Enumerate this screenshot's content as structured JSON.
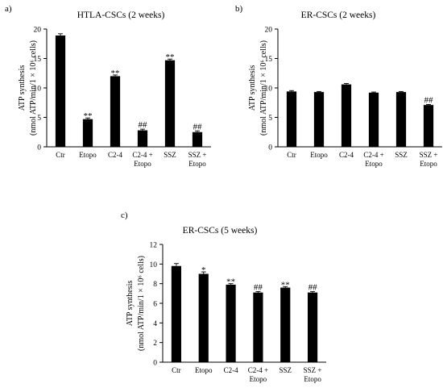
{
  "chart_data": [
    {
      "type": "bar",
      "panel": "a)",
      "title": "HTLA-CSCs (2 weeks)",
      "ylabel_line1": "ATP synthesis",
      "ylabel_line2": "(nmol ATP/min/1 × 10⁶ cells)",
      "ylim": [
        0,
        20
      ],
      "yticks": [
        0,
        5,
        10,
        15,
        20
      ],
      "categories": [
        [
          "Ctr"
        ],
        [
          "Etopo"
        ],
        [
          "C2-4"
        ],
        [
          "C2-4 +",
          "Etopo"
        ],
        [
          "SSZ"
        ],
        [
          "SSZ +",
          "Etopo"
        ]
      ],
      "values": [
        18.9,
        4.7,
        12.0,
        2.8,
        14.7,
        2.5
      ],
      "errors": [
        0.3,
        0.2,
        0.2,
        0.2,
        0.2,
        0.2
      ],
      "significance": [
        "",
        "**",
        "**",
        "##",
        "**",
        "##"
      ]
    },
    {
      "type": "bar",
      "panel": "b)",
      "title": "ER-CSCs (2 weeks)",
      "ylabel_line1": "ATP synthesis",
      "ylabel_line2": "(nmol ATP/min/1 × 10⁶ cells)",
      "ylim": [
        0,
        20
      ],
      "yticks": [
        0,
        5,
        10,
        15,
        20
      ],
      "categories": [
        [
          "Ctr"
        ],
        [
          "Etopo"
        ],
        [
          "C2-4"
        ],
        [
          "C2-4 +",
          "Etopo"
        ],
        [
          "SSZ"
        ],
        [
          "SSZ +",
          "Etopo"
        ]
      ],
      "values": [
        9.4,
        9.3,
        10.6,
        9.2,
        9.3,
        7.1
      ],
      "errors": [
        0.15,
        0.1,
        0.15,
        0.1,
        0.1,
        0.1
      ],
      "significance": [
        "",
        "",
        "",
        "",
        "",
        "##"
      ]
    },
    {
      "type": "bar",
      "panel": "c)",
      "title": "ER-CSCs (5 weeks)",
      "ylabel_line1": "ATP synthesis",
      "ylabel_line2": "(nmol ATP/min/1 × 10⁶ cells)",
      "ylim": [
        0,
        12
      ],
      "yticks": [
        0,
        2,
        4,
        6,
        8,
        10,
        12
      ],
      "categories": [
        [
          "Ctr"
        ],
        [
          "Etopo"
        ],
        [
          "C2-4"
        ],
        [
          "C2-4 +",
          "Etopo"
        ],
        [
          "SSZ"
        ],
        [
          "SSZ +",
          "Etopo"
        ]
      ],
      "values": [
        9.8,
        9.0,
        7.9,
        7.1,
        7.6,
        7.1
      ],
      "errors": [
        0.25,
        0.2,
        0.1,
        0.1,
        0.1,
        0.1
      ],
      "significance": [
        "",
        "*",
        "**",
        "##",
        "**",
        "##"
      ]
    }
  ]
}
